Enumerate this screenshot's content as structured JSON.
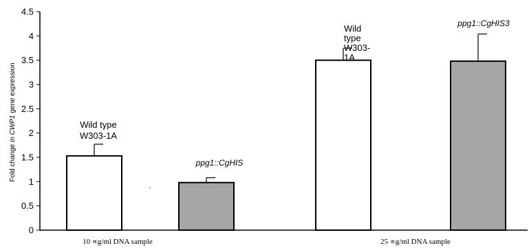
{
  "chart_data": {
    "type": "bar",
    "ylabel": {
      "prefix": "Fold change ",
      "italic": "in CWP1",
      "suffix": " gene expression"
    },
    "ylim": [
      0,
      4.5
    ],
    "yticks": [
      "0",
      "0.5",
      "1",
      "1.5",
      "2",
      "2.5",
      "3",
      "3.5",
      "4",
      "4.5"
    ],
    "categories": [
      "10 ∝g/ml DNA sample",
      "25 ∝g/ml DNA sample"
    ],
    "grid": false,
    "bars": [
      {
        "category": 0,
        "value": 1.53,
        "error": 0.24,
        "fill": "#ffffff",
        "annotation_lines": [
          "Wild type",
          "W303-1A"
        ],
        "annotation_italic": false
      },
      {
        "category": 0,
        "value": 0.98,
        "error": 0.1,
        "fill": "#a6a6a6",
        "annotation_lines": [
          "ppg1::CgHIS"
        ],
        "annotation_italic": true
      },
      {
        "category": 1,
        "value": 3.5,
        "error": 0.25,
        "fill": "#ffffff",
        "annotation_lines": [
          "Wild",
          "type",
          "W303-",
          "1A"
        ],
        "annotation_italic": false
      },
      {
        "category": 1,
        "value": 3.48,
        "error": 0.56,
        "fill": "#a6a6a6",
        "annotation_lines": [
          "ppg1::CgHIS3"
        ],
        "annotation_italic": true
      }
    ]
  }
}
